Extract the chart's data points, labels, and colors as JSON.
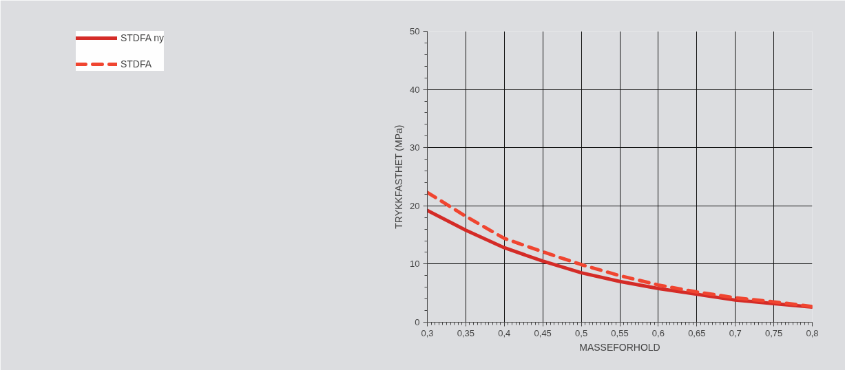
{
  "chart_data": {
    "type": "line",
    "xlabel": "MASSEFORHOLD",
    "ylabel": "TRYKKFASTHET (MPa)",
    "x": [
      0.3,
      0.35,
      0.4,
      0.45,
      0.5,
      0.55,
      0.6,
      0.65,
      0.7,
      0.75,
      0.8
    ],
    "series": [
      {
        "name": "STDFA ny",
        "color": "#d42b27",
        "line_style": "solid",
        "values": [
          19.2,
          15.8,
          12.8,
          10.5,
          8.5,
          7.0,
          5.8,
          4.8,
          3.8,
          3.2,
          2.6
        ]
      },
      {
        "name": "STDFA",
        "color": "#f04530",
        "line_style": "dashed",
        "values": [
          22.3,
          18.2,
          14.4,
          12.1,
          9.9,
          8.0,
          6.4,
          5.2,
          4.2,
          3.5,
          2.7
        ]
      }
    ],
    "xlim": [
      0.3,
      0.8
    ],
    "ylim": [
      0,
      50
    ],
    "xticks": [
      {
        "value": 0.3,
        "label": "0,3"
      },
      {
        "value": 0.35,
        "label": "0,35"
      },
      {
        "value": 0.4,
        "label": "0,4"
      },
      {
        "value": 0.45,
        "label": "0,45"
      },
      {
        "value": 0.5,
        "label": "0,5"
      },
      {
        "value": 0.55,
        "label": "0,55"
      },
      {
        "value": 0.6,
        "label": "0,6"
      },
      {
        "value": 0.65,
        "label": "0,65"
      },
      {
        "value": 0.7,
        "label": "0,7"
      },
      {
        "value": 0.75,
        "label": "0,75"
      },
      {
        "value": 0.8,
        "label": "0,8"
      }
    ],
    "yticks": [
      0,
      10,
      20,
      30,
      40,
      50
    ],
    "grid": true,
    "legend": "left",
    "marker": "none"
  }
}
